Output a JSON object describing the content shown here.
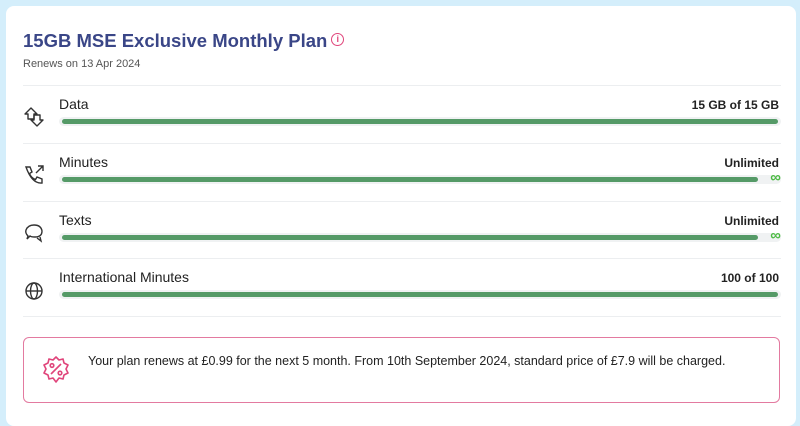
{
  "plan": {
    "title": "15GB MSE Exclusive Monthly Plan",
    "info_icon": "info-icon",
    "renews": "Renews on 13 Apr 2024"
  },
  "allowances": [
    {
      "label": "Data",
      "value": "15 GB of 15 GB",
      "icon": "data-transfer-icon",
      "fill_percent": 100,
      "unlimited": false
    },
    {
      "label": "Minutes",
      "value": "Unlimited",
      "icon": "phone-outgoing-icon",
      "fill_percent": 100,
      "unlimited": true,
      "unlimited_symbol": "∞"
    },
    {
      "label": "Texts",
      "value": "Unlimited",
      "icon": "chat-bubbles-icon",
      "fill_percent": 100,
      "unlimited": true,
      "unlimited_symbol": "∞"
    },
    {
      "label": "International Minutes",
      "value": "100 of 100",
      "icon": "globe-icon",
      "fill_percent": 100,
      "unlimited": false
    }
  ],
  "notice": {
    "icon": "discount-badge-icon",
    "text": "Your plan renews at £0.99 for the next 5 month. From 10th September 2024, standard price of £7.9 will be charged."
  },
  "colors": {
    "title": "#3a4687",
    "bar": "#559a67",
    "infinity": "#4dbb44",
    "accent": "#e0457b"
  }
}
